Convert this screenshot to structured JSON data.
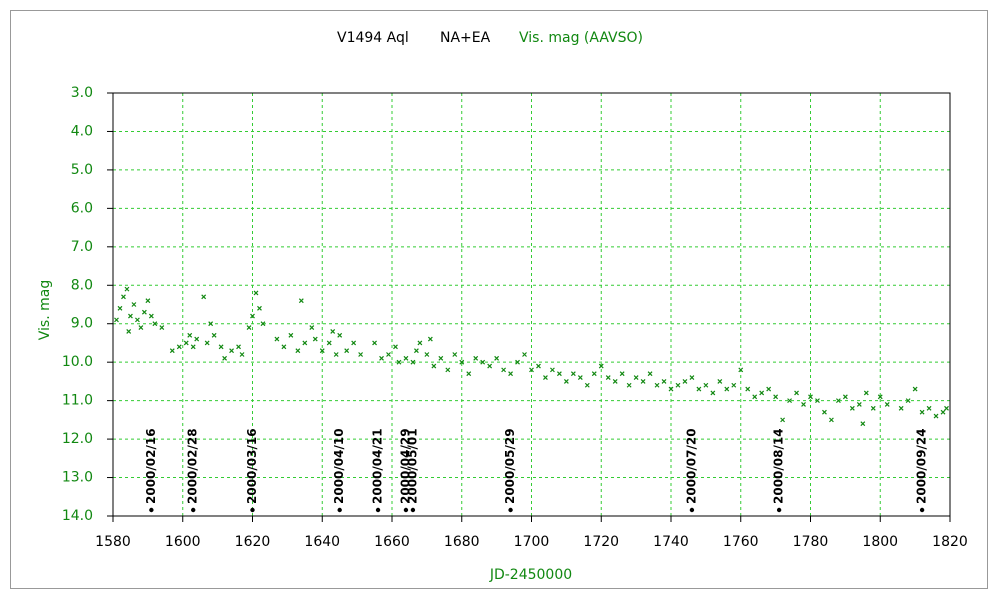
{
  "chart_data": {
    "type": "scatter",
    "title": "V1494 Aql",
    "subtitle": "NA+EA",
    "title_note": "Vis. mag (AAVSO)",
    "x_label": "JD-2450000",
    "y_label": "Vis. mag",
    "color": "#118811",
    "grid": true,
    "y_inverted": true,
    "xlim": [
      1580,
      1820
    ],
    "ylim": [
      3,
      14
    ],
    "xticks": [
      1580,
      1600,
      1620,
      1640,
      1660,
      1680,
      1700,
      1720,
      1740,
      1760,
      1780,
      1800,
      1820
    ],
    "yticks": [
      {
        "value": 3,
        "label": "3.0"
      },
      {
        "value": 4,
        "label": "4.0"
      },
      {
        "value": 5,
        "label": "5.0"
      },
      {
        "value": 6,
        "label": "6.0"
      },
      {
        "value": 7,
        "label": "7.0"
      },
      {
        "value": 8,
        "label": "8.0"
      },
      {
        "value": 9,
        "label": "9.0"
      },
      {
        "value": 10,
        "label": "10.0"
      },
      {
        "value": 11,
        "label": "11.0"
      },
      {
        "value": 12,
        "label": "12.0"
      },
      {
        "value": 13,
        "label": "13.0"
      },
      {
        "value": 14,
        "label": "14.0"
      }
    ],
    "x": [
      1581,
      1582,
      1583,
      1584,
      1584.5,
      1585,
      1586,
      1587,
      1588,
      1589,
      1590,
      1591,
      1592,
      1594,
      1597,
      1599,
      1601,
      1602,
      1603,
      1604,
      1606,
      1607,
      1608,
      1609,
      1611,
      1612,
      1614,
      1616,
      1617,
      1619,
      1620,
      1621,
      1622,
      1623,
      1627,
      1629,
      1631,
      1633,
      1634,
      1635,
      1637,
      1638,
      1640,
      1642,
      1643,
      1644,
      1645,
      1647,
      1649,
      1651,
      1655,
      1657,
      1659,
      1661,
      1662,
      1664,
      1666,
      1667,
      1668,
      1670,
      1671,
      1672,
      1674,
      1676,
      1678,
      1680,
      1682,
      1684,
      1686,
      1688,
      1690,
      1692,
      1694,
      1696,
      1698,
      1700,
      1702,
      1704,
      1706,
      1708,
      1710,
      1712,
      1714,
      1716,
      1718,
      1720,
      1722,
      1724,
      1726,
      1728,
      1730,
      1732,
      1734,
      1736,
      1738,
      1740,
      1742,
      1744,
      1746,
      1748,
      1750,
      1752,
      1754,
      1756,
      1758,
      1760,
      1762,
      1764,
      1766,
      1768,
      1770,
      1772,
      1774,
      1776,
      1778,
      1780,
      1782,
      1784,
      1786,
      1788,
      1790,
      1792,
      1794,
      1795,
      1796,
      1798,
      1800,
      1802,
      1806,
      1808,
      1810,
      1812,
      1814,
      1816,
      1818,
      1819
    ],
    "values": [
      8.9,
      8.6,
      8.3,
      8.1,
      9.2,
      8.8,
      8.5,
      8.9,
      9.1,
      8.7,
      8.4,
      8.8,
      9.0,
      9.1,
      9.7,
      9.6,
      9.5,
      9.3,
      9.6,
      9.4,
      8.3,
      9.5,
      9.0,
      9.3,
      9.6,
      9.9,
      9.7,
      9.6,
      9.8,
      9.1,
      8.8,
      8.2,
      8.6,
      9.0,
      9.4,
      9.6,
      9.3,
      9.7,
      8.4,
      9.5,
      9.1,
      9.4,
      9.7,
      9.5,
      9.2,
      9.8,
      9.3,
      9.7,
      9.5,
      9.8,
      9.5,
      9.9,
      9.8,
      9.6,
      10.0,
      9.9,
      10.0,
      9.7,
      9.5,
      9.8,
      9.4,
      10.1,
      9.9,
      10.2,
      9.8,
      10.0,
      10.3,
      9.9,
      10.0,
      10.1,
      9.9,
      10.2,
      10.3,
      10.0,
      9.8,
      10.2,
      10.1,
      10.4,
      10.2,
      10.3,
      10.5,
      10.3,
      10.4,
      10.6,
      10.3,
      10.1,
      10.4,
      10.5,
      10.3,
      10.6,
      10.4,
      10.5,
      10.3,
      10.6,
      10.5,
      10.7,
      10.6,
      10.5,
      10.4,
      10.7,
      10.6,
      10.8,
      10.5,
      10.7,
      10.6,
      10.2,
      10.7,
      10.9,
      10.8,
      10.7,
      10.9,
      11.5,
      11.0,
      10.8,
      11.1,
      10.9,
      11.0,
      11.3,
      11.5,
      11.0,
      10.9,
      11.2,
      11.1,
      11.6,
      10.8,
      11.2,
      10.9,
      11.1,
      11.2,
      11.0,
      10.7,
      11.3,
      11.2,
      11.4,
      11.3,
      11.2
    ],
    "annotations": [
      {
        "x": 1591,
        "label": "2000/02/16"
      },
      {
        "x": 1603,
        "label": "2000/02/28"
      },
      {
        "x": 1620,
        "label": "2000/03/16"
      },
      {
        "x": 1645,
        "label": "2000/04/10"
      },
      {
        "x": 1656,
        "label": "2000/04/21"
      },
      {
        "x": 1664,
        "label": "2000/04/29"
      },
      {
        "x": 1666,
        "label": "2000/05/01"
      },
      {
        "x": 1694,
        "label": "2000/05/29"
      },
      {
        "x": 1746,
        "label": "2000/07/20"
      },
      {
        "x": 1771,
        "label": "2000/08/14"
      },
      {
        "x": 1812,
        "label": "2000/09/24"
      }
    ]
  }
}
